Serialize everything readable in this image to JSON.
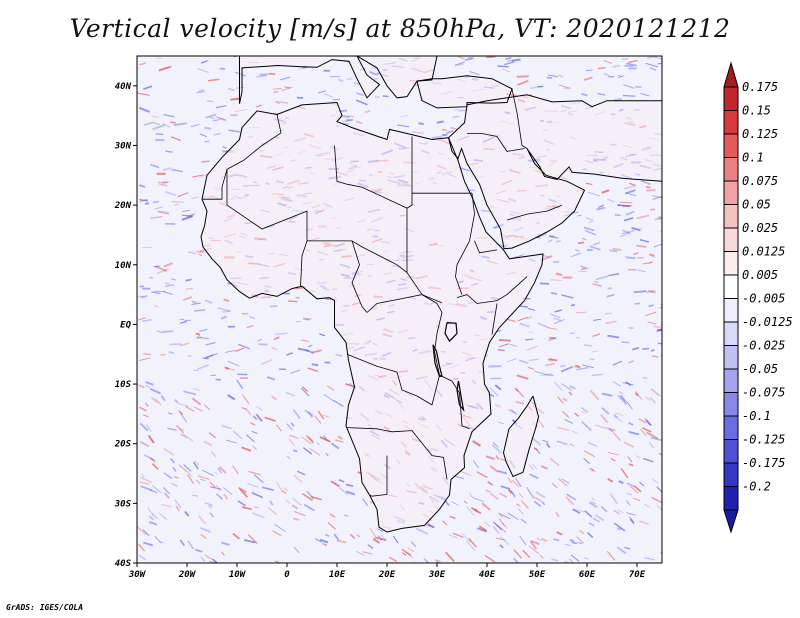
{
  "title": "Vertical velocity [m/s] at 850hPa, VT: 2020121212",
  "footer": "GrADS: IGES/COLA",
  "map": {
    "lon_range": [
      -30,
      75
    ],
    "lat_range": [
      -40,
      45
    ],
    "lon_ticks": [
      {
        "lon": -30,
        "label": "30W"
      },
      {
        "lon": -20,
        "label": "20W"
      },
      {
        "lon": -10,
        "label": "10W"
      },
      {
        "lon": 0,
        "label": "0"
      },
      {
        "lon": 10,
        "label": "10E"
      },
      {
        "lon": 20,
        "label": "20E"
      },
      {
        "lon": 30,
        "label": "30E"
      },
      {
        "lon": 40,
        "label": "40E"
      },
      {
        "lon": 50,
        "label": "50E"
      },
      {
        "lon": 60,
        "label": "60E"
      },
      {
        "lon": 70,
        "label": "70E"
      }
    ],
    "lat_ticks": [
      {
        "lat": 40,
        "label": "40N"
      },
      {
        "lat": 30,
        "label": "30N"
      },
      {
        "lat": 20,
        "label": "20N"
      },
      {
        "lat": 10,
        "label": "10N"
      },
      {
        "lat": 0,
        "label": "EQ"
      },
      {
        "lat": -10,
        "label": "10S"
      },
      {
        "lat": -20,
        "label": "20S"
      },
      {
        "lat": -30,
        "label": "30S"
      },
      {
        "lat": -40,
        "label": "40S"
      }
    ]
  },
  "colorbar": {
    "top_color": "#a51c1c",
    "bottom_color": "#1c1ca0",
    "bins": [
      "#c1272d",
      "#d63a3a",
      "#e35b5b",
      "#ec7f7f",
      "#f2a2a2",
      "#f6c1c1",
      "#f9dada",
      "#fdeeee",
      "#ffffff",
      "#eeeefd",
      "#d8d8f9",
      "#c0c0f5",
      "#a4a4f0",
      "#8888ea",
      "#6c6ce2",
      "#4f4fd8",
      "#3636c6",
      "#2020b0"
    ],
    "labels": [
      "0.175",
      "0.15",
      "0.125",
      "0.1",
      "0.075",
      "0.05",
      "0.025",
      "0.0125",
      "0.005",
      "-0.005",
      "-0.0125",
      "-0.025",
      "-0.05",
      "-0.075",
      "-0.1",
      "-0.125",
      "-0.175",
      "-0.2"
    ]
  },
  "colors": {
    "ocean_bg": "#f2f2fd",
    "land_bg": "#f7eef2",
    "positive": "#e0494b",
    "negative": "#5a5ae6"
  }
}
